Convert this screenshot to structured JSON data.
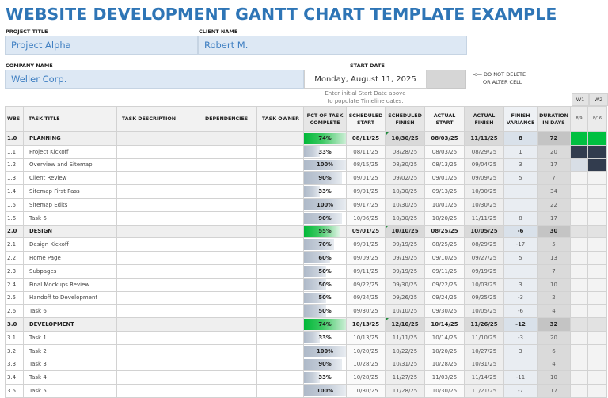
{
  "title": "WEBSITE DEVELOPMENT GANTT CHART TEMPLATE EXAMPLE",
  "fields": {
    "project_title_label": "PROJECT TITLE",
    "project_title": "Project Alpha",
    "client_name_label": "CLIENT NAME",
    "client_name": "Robert M.",
    "company_name_label": "COMPANY NAME",
    "company_name": "Weller Corp.",
    "start_date_label": "START DATE",
    "start_date": "Monday, August 11, 2025",
    "note_line1": "<— DO NOT DELETE",
    "note_line2": "OR ALTER CELL",
    "hint_line1": "Enter initial Start Date above",
    "hint_line2": "to populate Timeline dates."
  },
  "table": {
    "headers": {
      "wbs": "WBS",
      "task_title": "TASK TITLE",
      "task_description": "TASK DESCRIPTION",
      "dependencies": "DEPENDENCIES",
      "task_owner": "TASK OWNER",
      "pct_l1": "PCT OF TASK",
      "pct_l2": "COMPLETE",
      "ss_l1": "SCHEDULED",
      "ss_l2": "START",
      "sf_l1": "SCHEDULED",
      "sf_l2": "FINISH",
      "as_l1": "ACTUAL",
      "as_l2": "START",
      "af_l1": "ACTUAL",
      "af_l2": "FINISH",
      "fv_l1": "FINISH",
      "fv_l2": "VARIANCE",
      "dur_l1": "DURATION",
      "dur_l2": "IN DAYS"
    },
    "weeks": [
      {
        "label": "W1",
        "date": "8/9"
      },
      {
        "label": "W2",
        "date": "8/16"
      }
    ],
    "rows": [
      {
        "wbs": "1.0",
        "title": "PLANNING",
        "group": true,
        "pct": "74%",
        "pct_val": 74,
        "ss": "08/11/25",
        "sf": "10/30/25",
        "as": "08/03/25",
        "af": "11/11/25",
        "var": "8",
        "dur": "72",
        "w1": "green",
        "w2": "green"
      },
      {
        "wbs": "1.1",
        "title": "Project Kickoff",
        "pct": "33%",
        "pct_val": 33,
        "ss": "08/11/25",
        "sf": "08/28/25",
        "as": "08/03/25",
        "af": "08/29/25",
        "var": "1",
        "dur": "20",
        "w1": "dark",
        "w2": "dark"
      },
      {
        "wbs": "1.2",
        "title": "Overview and Sitemap",
        "pct": "100%",
        "pct_val": 100,
        "ss": "08/15/25",
        "sf": "08/30/25",
        "as": "08/13/25",
        "af": "09/04/25",
        "var": "3",
        "dur": "17",
        "w1": "light",
        "w2": "dark"
      },
      {
        "wbs": "1.3",
        "title": "Client Review",
        "pct": "90%",
        "pct_val": 90,
        "ss": "09/01/25",
        "sf": "09/02/25",
        "as": "09/01/25",
        "af": "09/09/25",
        "var": "5",
        "dur": "7",
        "w1": "",
        "w2": ""
      },
      {
        "wbs": "1.4",
        "title": "Sitemap First Pass",
        "pct": "33%",
        "pct_val": 33,
        "ss": "09/01/25",
        "sf": "10/30/25",
        "as": "09/13/25",
        "af": "10/30/25",
        "var": "",
        "dur": "34",
        "w1": "",
        "w2": ""
      },
      {
        "wbs": "1.5",
        "title": "Sitemap Edits",
        "pct": "100%",
        "pct_val": 100,
        "ss": "09/17/25",
        "sf": "10/30/25",
        "as": "10/01/25",
        "af": "10/30/25",
        "var": "",
        "dur": "22",
        "w1": "",
        "w2": ""
      },
      {
        "wbs": "1.6",
        "title": "Task 6",
        "pct": "90%",
        "pct_val": 90,
        "ss": "10/06/25",
        "sf": "10/30/25",
        "as": "10/20/25",
        "af": "11/11/25",
        "var": "8",
        "dur": "17",
        "w1": "",
        "w2": ""
      },
      {
        "wbs": "2.0",
        "title": "DESIGN",
        "group": true,
        "pct": "55%",
        "pct_val": 55,
        "ss": "09/01/25",
        "sf": "10/10/25",
        "as": "08/25/25",
        "af": "10/05/25",
        "var": "-6",
        "dur": "30",
        "w1": "",
        "w2": ""
      },
      {
        "wbs": "2.1",
        "title": "Design Kickoff",
        "pct": "70%",
        "pct_val": 70,
        "ss": "09/01/25",
        "sf": "09/19/25",
        "as": "08/25/25",
        "af": "08/29/25",
        "var": "-17",
        "dur": "5",
        "w1": "",
        "w2": ""
      },
      {
        "wbs": "2.2",
        "title": "Home Page",
        "pct": "60%",
        "pct_val": 60,
        "ss": "09/09/25",
        "sf": "09/19/25",
        "as": "09/10/25",
        "af": "09/27/25",
        "var": "5",
        "dur": "13",
        "w1": "",
        "w2": ""
      },
      {
        "wbs": "2.3",
        "title": "Subpages",
        "pct": "50%",
        "pct_val": 50,
        "ss": "09/11/25",
        "sf": "09/19/25",
        "as": "09/11/25",
        "af": "09/19/25",
        "var": "",
        "dur": "7",
        "w1": "",
        "w2": ""
      },
      {
        "wbs": "2.4",
        "title": "Final Mockups Review",
        "pct": "50%",
        "pct_val": 50,
        "ss": "09/22/25",
        "sf": "09/30/25",
        "as": "09/22/25",
        "af": "10/03/25",
        "var": "3",
        "dur": "10",
        "w1": "",
        "w2": ""
      },
      {
        "wbs": "2.5",
        "title": "Handoff to Development",
        "pct": "50%",
        "pct_val": 50,
        "ss": "09/24/25",
        "sf": "09/26/25",
        "as": "09/24/25",
        "af": "09/25/25",
        "var": "-3",
        "dur": "2",
        "w1": "",
        "w2": ""
      },
      {
        "wbs": "2.6",
        "title": "Task 6",
        "pct": "50%",
        "pct_val": 50,
        "ss": "09/30/25",
        "sf": "10/10/25",
        "as": "09/30/25",
        "af": "10/05/25",
        "var": "-6",
        "dur": "4",
        "w1": "",
        "w2": ""
      },
      {
        "wbs": "3.0",
        "title": "DEVELOPMENT",
        "group": true,
        "pct": "74%",
        "pct_val": 74,
        "ss": "10/13/25",
        "sf": "12/10/25",
        "as": "10/14/25",
        "af": "11/26/25",
        "var": "-12",
        "dur": "32",
        "w1": "",
        "w2": ""
      },
      {
        "wbs": "3.1",
        "title": "Task 1",
        "pct": "33%",
        "pct_val": 33,
        "ss": "10/13/25",
        "sf": "11/11/25",
        "as": "10/14/25",
        "af": "11/10/25",
        "var": "-3",
        "dur": "20",
        "w1": "",
        "w2": ""
      },
      {
        "wbs": "3.2",
        "title": "Task 2",
        "pct": "100%",
        "pct_val": 100,
        "ss": "10/20/25",
        "sf": "10/22/25",
        "as": "10/20/25",
        "af": "10/27/25",
        "var": "3",
        "dur": "6",
        "w1": "",
        "w2": ""
      },
      {
        "wbs": "3.3",
        "title": "Task 3",
        "pct": "90%",
        "pct_val": 90,
        "ss": "10/28/25",
        "sf": "10/31/25",
        "as": "10/28/25",
        "af": "10/31/25",
        "var": "",
        "dur": "4",
        "w1": "",
        "w2": ""
      },
      {
        "wbs": "3.4",
        "title": "Task 4",
        "pct": "33%",
        "pct_val": 33,
        "ss": "10/28/25",
        "sf": "11/27/25",
        "as": "11/03/25",
        "af": "11/14/25",
        "var": "-11",
        "dur": "10",
        "w1": "",
        "w2": ""
      },
      {
        "wbs": "3.5",
        "title": "Task 5",
        "pct": "100%",
        "pct_val": 100,
        "ss": "10/30/25",
        "sf": "11/28/25",
        "as": "10/30/25",
        "af": "11/21/25",
        "var": "-7",
        "dur": "17",
        "w1": "",
        "w2": ""
      }
    ]
  },
  "colors": {
    "title_blue": "#2e75b6",
    "field_bg": "#dde8f4",
    "group_bar_green": "#00c040",
    "gantt_dark": "#323c4e",
    "gantt_light": "#d8dee6",
    "task_bar_grey": "#b8c3d1"
  }
}
